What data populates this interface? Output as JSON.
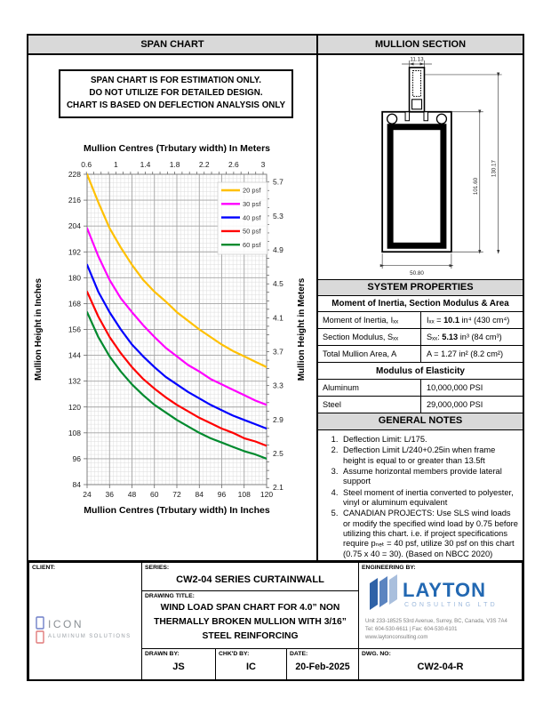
{
  "headers": {
    "span_chart": "SPAN CHART",
    "mullion_section": "MULLION SECTION",
    "system_properties": "SYSTEM PROPERTIES",
    "general_notes": "GENERAL NOTES"
  },
  "warning": {
    "line1": "SPAN CHART IS FOR ESTIMATION ONLY.",
    "line2": "DO NOT UTILIZE FOR DETAILED DESIGN.",
    "line3": "CHART IS BASED ON DEFLECTION ANALYSIS ONLY"
  },
  "chart_data": {
    "type": "line",
    "top_axis_title": "Mullion Centres (Trbutary width) In Meters",
    "bottom_axis_title": "Mullion Centres (Trbutary width) In Inches",
    "left_axis_title": "Mullion Height in Inches",
    "right_axis_title": "Mullion Height in Meters",
    "xlim_inches": [
      24,
      120
    ],
    "ylim_inches": [
      84,
      228
    ],
    "x_ticks_inches": [
      24,
      36,
      48,
      60,
      72,
      84,
      96,
      108,
      120
    ],
    "y_ticks_inches": [
      84,
      96,
      108,
      120,
      132,
      144,
      156,
      168,
      180,
      192,
      204,
      216,
      228
    ],
    "top_ticks_meters": [
      0.6,
      1,
      1.4,
      1.8,
      2.2,
      2.6,
      3
    ],
    "right_ticks_meters": [
      2.1,
      2.5,
      2.9,
      3.3,
      3.7,
      4.1,
      4.5,
      4.9,
      5.3,
      5.7
    ],
    "x_inches": [
      24,
      30,
      36,
      42,
      48,
      54,
      60,
      66,
      72,
      78,
      84,
      90,
      96,
      102,
      108,
      114,
      120
    ],
    "series": [
      {
        "name": "20 psf",
        "color": "#FFC000",
        "values": [
          228,
          215,
          203,
          194,
          186,
          179,
          173.5,
          169,
          164,
          160,
          156,
          152.5,
          149,
          146,
          143.5,
          141,
          138.5
        ]
      },
      {
        "name": "30 psf",
        "color": "#FF00FF",
        "values": [
          203,
          190,
          179,
          170.5,
          164,
          158,
          152.5,
          147.5,
          143.5,
          139.5,
          136.5,
          133,
          130.5,
          128,
          125.5,
          123,
          121
        ]
      },
      {
        "name": "40 psf",
        "color": "#0000FF",
        "values": [
          186,
          173.5,
          164,
          156,
          149,
          143.5,
          138.5,
          134,
          130.5,
          127,
          124,
          121,
          118.5,
          116,
          114,
          112,
          110
        ]
      },
      {
        "name": "50 psf",
        "color": "#FF0000",
        "values": [
          173.5,
          162,
          152.5,
          145,
          138.5,
          133,
          128.5,
          124.5,
          121,
          118,
          115,
          112.5,
          110,
          108,
          105.5,
          104,
          102
        ]
      },
      {
        "name": "60 psf",
        "color": "#008A2E",
        "values": [
          164,
          152.5,
          143.5,
          136.5,
          130.5,
          125.5,
          121,
          117.5,
          114,
          111,
          108,
          105.5,
          103.5,
          101.5,
          99.5,
          98,
          96
        ]
      }
    ],
    "legend_position": "top-right",
    "grid": {
      "minor_step_inches": 2,
      "major_step_inches": 12
    }
  },
  "mullion_section": {
    "dim_top_width": "11.13",
    "dim_inner_height": "101.60",
    "dim_overall_height": "130.17",
    "dim_bottom_width": "50.80"
  },
  "system_properties": {
    "subheader": "Moment of Inertia, Section Modulus & Area",
    "rows": [
      {
        "label": "Moment of Inertia, Iₓₓ",
        "value_pre": "Iₓₓ = ",
        "value_bold": "10.1",
        "value_post": " in⁴ (430 cm⁴)"
      },
      {
        "label": "Section Modulus, Sₓₓ",
        "value_pre": "Sₓₓ: ",
        "value_bold": "5.13",
        "value_post": " in³ (84 cm³)"
      },
      {
        "label": "Total Mullion Area, A",
        "value_pre": "A = 1.27 in²  (8.2 cm²)",
        "value_bold": "",
        "value_post": ""
      }
    ],
    "modulus_header": "Modulus of Elasticity",
    "modulus_rows": [
      {
        "label": "Aluminum",
        "value": "10,000,000 PSI"
      },
      {
        "label": "Steel",
        "value": "29,000,000 PSI"
      }
    ]
  },
  "general_notes": {
    "items": [
      "Deflection Limit: L/175.",
      "Deflection Limit L/240+0.25in when frame height is equal to or greater than 13.5ft",
      "Assume horizontal members provide lateral support",
      "Steel moment of inertia converted to polyester, vinyl or aluminum equivalent",
      "CANADIAN PROJECTS:  Use SLS wind loads or modify the specified wind load by 0.75 before utilizing this chart. i.e. if project specifications require pₙₑₜ = 40 psf, utilize 30 psf on this chart (0.75 x 40 = 30). (Based on NBCC 2020)"
    ]
  },
  "title_block": {
    "client_label": "CLIENT:",
    "series_label": "SERIES:",
    "series_value": "CW2-04 SERIES CURTAINWALL",
    "drawing_title_label": "DRAWING TITLE:",
    "drawing_title_line1": "WIND LOAD SPAN CHART FOR 4.0” NON",
    "drawing_title_line2": "THERMALLY BROKEN MULLION WITH 3/16”",
    "drawing_title_line3": "STEEL REINFORCING",
    "engineering_label": "ENGINEERING BY:",
    "drawn_by_label": "DRAWN BY:",
    "drawn_by": "JS",
    "chkd_by_label": "CHK'D BY:",
    "chkd_by": "IC",
    "date_label": "DATE:",
    "date": "20-Feb-2025",
    "dwg_no_label": "DWG. NO:",
    "dwg_no": "CW2-04-R"
  },
  "logos": {
    "icon": {
      "name": "ICON",
      "tagline": "ALUMINUM SOLUTIONS"
    },
    "layton": {
      "name": "LAYTON",
      "tagline": "CONSULTING LTD",
      "address_line1": "Unit 233-18525 53rd Avenue, Surrey, BC,  Canada, V3S 7A4",
      "address_line2": "Tel: 604-530-6611 | Fax:  604-530-6101 www.laytonconsulting.com",
      "brand_color": "#2268B2",
      "light_color": "#9BB8DC"
    }
  }
}
